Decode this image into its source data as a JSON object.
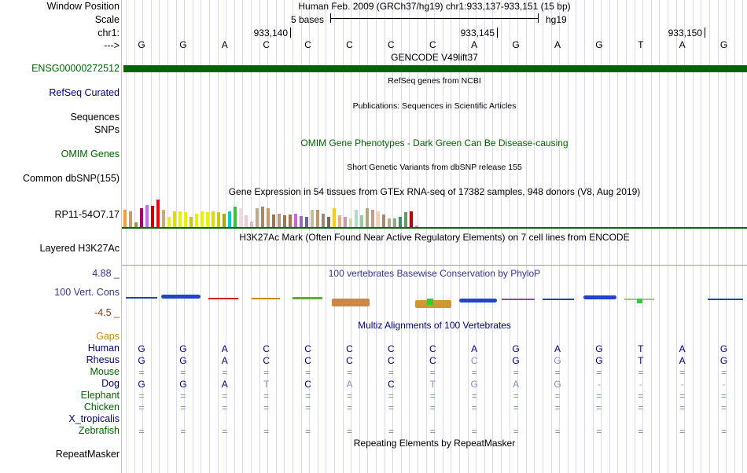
{
  "ruler": {
    "position_label": "Window Position",
    "scale_label": "Scale",
    "chrom_label": "chr1:",
    "arrow_label": "--->",
    "header": "Human Feb. 2009 (GRCh37/hg19)    chr1:933,137-933,151 (15 bp)",
    "scale_text": "5 bases",
    "assembly": "hg19",
    "ticks": [
      "933,140",
      "933,145",
      "933,150"
    ]
  },
  "sequence": [
    "G",
    "G",
    "A",
    "C",
    "C",
    "C",
    "C",
    "C",
    "A",
    "G",
    "A",
    "G",
    "T",
    "A",
    "G"
  ],
  "tracks": {
    "gencode": {
      "title": "GENCODE V49lift37",
      "label": "ENSG00000272512",
      "color": "#006600"
    },
    "refseq": {
      "title": "RefSeq genes from NCBI",
      "label": "RefSeq Curated"
    },
    "publications": {
      "title": "Publications: Sequences in Scientific Articles",
      "label": "Sequences"
    },
    "snps": {
      "label": "SNPs"
    },
    "omim": {
      "title": "OMIM Gene Phenotypes - Dark Green Can Be Disease-causing",
      "label": "OMIM Genes",
      "color": "#006600"
    },
    "dbsnp": {
      "title": "Short Genetic Variants from dbSNP release 155",
      "label": "Common dbSNP(155)"
    },
    "gtex": {
      "title": "Gene Expression in 54 tissues from GTEx RNA-seq of 17382 samples, 948 donors (V8, Aug 2019)",
      "label": "RP11-54O7.17",
      "values": [
        0.6,
        0.55,
        0.15,
        0.65,
        0.75,
        0.72,
        0.95,
        0.6,
        0.35,
        0.55,
        0.55,
        0.5,
        0.35,
        0.45,
        0.55,
        0.5,
        0.55,
        0.5,
        0.45,
        0.55,
        0.7,
        0.65,
        0.4,
        0.2,
        0.65,
        0.7,
        0.65,
        0.42,
        0.45,
        0.4,
        0.42,
        0.45,
        0.38,
        0.35,
        0.6,
        0.6,
        0.45,
        0.35,
        0.65,
        0.4,
        0.35,
        0.3,
        0.6,
        0.4,
        0.65,
        0.6,
        0.55,
        0.42,
        0.3,
        0.3,
        0.35,
        0.5,
        0.55,
        0.05
      ],
      "colors": [
        "#ff9933",
        "#cc9966",
        "#999933",
        "#aa0066",
        "#cc66ff",
        "#cc0000",
        "#ff0000",
        "#ccaa77",
        "#eeee00",
        "#dddd00",
        "#eeee00",
        "#eeee00",
        "#cccc00",
        "#eeee00",
        "#eeee00",
        "#eeee00",
        "#dddd00",
        "#cccc00",
        "#aaaa00",
        "#00cccc",
        "#33cc33",
        "#eedddd",
        "#eecccc",
        "#ddbbbb",
        "#bbaa88",
        "#aa8866",
        "#cc9966",
        "#997755",
        "#bb9977",
        "#997755",
        "#aa7744",
        "#cc66cc",
        "#9966cc",
        "#666699",
        "#ccbb99",
        "#bb9966",
        "#998877",
        "#776655",
        "#ffcc00",
        "#eeaa77",
        "#cc99aa",
        "#ccddaa",
        "#aaddcc",
        "#99cc99",
        "#aaaa77",
        "#cc9988",
        "#ffccaa",
        "#aa8877",
        "#bbaa88",
        "#99aa77",
        "#339966",
        "#669966",
        "#cc0000",
        "#ee88aa"
      ]
    },
    "h3k27ac": {
      "title": "H3K27Ac Mark (Often Found Near Active Regulatory Elements) on 7 cell lines from ENCODE",
      "label": "Layered H3K27Ac"
    },
    "phylop": {
      "title": "100 vertebrates Basewise Conservation by PhyloP",
      "label": "100 Vert. Cons",
      "max": "4.88 _",
      "min": "-4.5 _",
      "color": "#333399"
    },
    "multiz": {
      "title": "Multiz Alignments of 100 Vertebrates",
      "gaps_label": "Gaps",
      "gaps_color": "#cc8800"
    },
    "repeat": {
      "title": "Repeating Elements by RepeatMasker",
      "label": "RepeatMasker"
    }
  },
  "species": [
    {
      "name": "Human",
      "color": "#000080",
      "bases": [
        "G",
        "G",
        "A",
        "C",
        "C",
        "C",
        "C",
        "C",
        "A",
        "G",
        "A",
        "G",
        "T",
        "A",
        "G"
      ]
    },
    {
      "name": "Rhesus",
      "color": "#000080",
      "bases": [
        "G",
        "G",
        "A",
        "C",
        "C",
        "C",
        "C",
        "C",
        "C",
        "G",
        "G",
        "G",
        "T",
        "A",
        "G"
      ]
    },
    {
      "name": "Mouse",
      "color": "#006600",
      "bases": [
        "=",
        "=",
        "=",
        "=",
        "=",
        "=",
        "=",
        "=",
        "=",
        "=",
        "=",
        "=",
        "=",
        "=",
        "="
      ]
    },
    {
      "name": "Dog",
      "color": "#000080",
      "bases": [
        "G",
        "G",
        "A",
        "T",
        "C",
        "A",
        "C",
        "T",
        "G",
        "A",
        "G",
        "-",
        "-",
        "-",
        "-"
      ]
    },
    {
      "name": "Elephant",
      "color": "#006600",
      "bases": [
        "=",
        "=",
        "=",
        "=",
        "=",
        "=",
        "=",
        "=",
        "=",
        "=",
        "=",
        "=",
        "=",
        "=",
        "="
      ]
    },
    {
      "name": "Chicken",
      "color": "#006600",
      "bases": [
        "=",
        "=",
        "=",
        "=",
        "=",
        "=",
        "=",
        "=",
        "=",
        "=",
        "=",
        "=",
        "=",
        "=",
        "="
      ]
    },
    {
      "name": "X_tropicalis",
      "color": "#000080",
      "bases": []
    },
    {
      "name": "Zebrafish",
      "color": "#006600",
      "bases": [
        "=",
        "=",
        "=",
        "=",
        "=",
        "=",
        "=",
        "=",
        "=",
        "=",
        "=",
        "=",
        "=",
        "=",
        "="
      ]
    }
  ]
}
